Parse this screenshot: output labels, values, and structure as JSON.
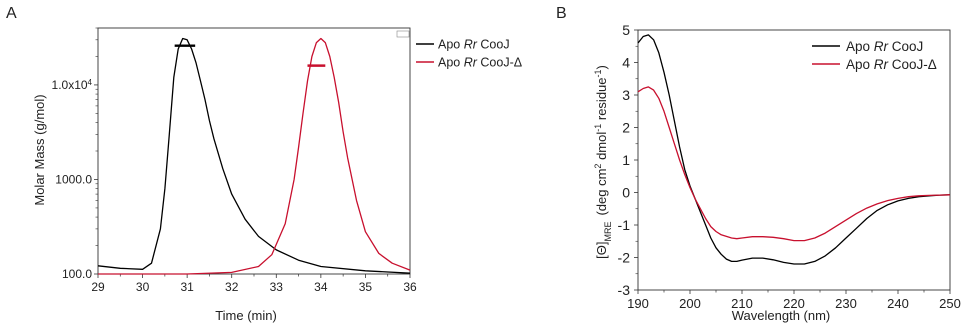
{
  "chart_data": [
    {
      "panel": "A",
      "type": "line",
      "xlabel": "Time (min)",
      "ylabel": "Molar Mass (g/mol)",
      "xlim": [
        29,
        36
      ],
      "ylim": [
        100,
        40000
      ],
      "yscale": "log",
      "x_ticks": [
        "29",
        "30",
        "31",
        "32",
        "33",
        "34",
        "35",
        "36"
      ],
      "y_ticks": [
        {
          "value": 100,
          "label": "100.0"
        },
        {
          "value": 1000,
          "label": "1000.0"
        },
        {
          "value": 10000,
          "label": "1.0x10",
          "sup": "4"
        }
      ],
      "legend_position": "outside-right",
      "series": [
        {
          "name": "Apo Rr CooJ",
          "color": "#000000",
          "x": [
            29,
            29.5,
            30,
            30.2,
            30.4,
            30.5,
            30.6,
            30.7,
            30.8,
            30.9,
            31.0,
            31.1,
            31.2,
            31.3,
            31.4,
            31.5,
            31.6,
            31.8,
            32.0,
            32.3,
            32.6,
            33.0,
            33.5,
            34.0,
            35.0,
            36.0
          ],
          "y": [
            122,
            115,
            112,
            130,
            300,
            800,
            3000,
            12000,
            24000,
            31000,
            30000,
            24000,
            17000,
            11000,
            7000,
            4200,
            2700,
            1300,
            700,
            380,
            250,
            180,
            140,
            120,
            108,
            102
          ]
        },
        {
          "name": "Apo Rr CooJ-Δ",
          "color": "#c8102e",
          "x": [
            29,
            30,
            31,
            32,
            32.6,
            32.9,
            33.2,
            33.4,
            33.5,
            33.6,
            33.7,
            33.8,
            33.9,
            34.0,
            34.1,
            34.2,
            34.3,
            34.4,
            34.5,
            34.6,
            34.8,
            35.0,
            35.3,
            35.6,
            36.0
          ],
          "y": [
            100,
            100,
            100,
            104,
            120,
            160,
            340,
            1000,
            2200,
            5000,
            11000,
            20000,
            28000,
            31000,
            28000,
            20000,
            12000,
            6500,
            3200,
            1700,
            600,
            280,
            165,
            130,
            110
          ]
        }
      ],
      "mass_bars": [
        {
          "series": "Apo Rr CooJ",
          "x_start": 30.72,
          "x_end": 31.18,
          "y": 26000
        },
        {
          "series": "Apo Rr CooJ-Δ",
          "x_start": 33.7,
          "x_end": 34.1,
          "y": 16000
        }
      ]
    },
    {
      "panel": "B",
      "type": "line",
      "xlabel": "Wavelength (nm)",
      "xlim": [
        190,
        250
      ],
      "ylim": [
        -3,
        5
      ],
      "x_ticks": [
        "190",
        "200",
        "210",
        "220",
        "230",
        "240",
        "250"
      ],
      "y_ticks": [
        "-3",
        "-2",
        "-1",
        "0",
        "1",
        "2",
        "3",
        "4",
        "5"
      ],
      "legend_position": "top-right",
      "series": [
        {
          "name": "Apo Rr CooJ",
          "color": "#000000",
          "x": [
            190,
            191,
            192,
            193,
            194,
            195,
            196,
            197,
            198,
            199,
            200,
            201,
            202,
            203,
            204,
            205,
            206,
            207,
            208,
            209,
            210,
            212,
            214,
            216,
            218,
            220,
            222,
            224,
            226,
            228,
            230,
            232,
            234,
            236,
            238,
            240,
            242,
            244,
            246,
            248,
            250
          ],
          "y": [
            4.6,
            4.8,
            4.85,
            4.7,
            4.3,
            3.7,
            3.0,
            2.2,
            1.4,
            0.7,
            0.2,
            -0.2,
            -0.6,
            -1.0,
            -1.4,
            -1.7,
            -1.9,
            -2.05,
            -2.12,
            -2.12,
            -2.08,
            -2.02,
            -2.02,
            -2.07,
            -2.15,
            -2.2,
            -2.2,
            -2.12,
            -1.95,
            -1.7,
            -1.4,
            -1.1,
            -0.8,
            -0.55,
            -0.38,
            -0.26,
            -0.18,
            -0.13,
            -0.1,
            -0.08,
            -0.07
          ]
        },
        {
          "name": "Apo Rr CooJ-Δ",
          "color": "#c8102e",
          "x": [
            190,
            191,
            192,
            193,
            194,
            195,
            196,
            197,
            198,
            199,
            200,
            201,
            202,
            203,
            204,
            205,
            206,
            207,
            208,
            209,
            210,
            212,
            214,
            216,
            218,
            220,
            222,
            224,
            226,
            228,
            230,
            232,
            234,
            236,
            238,
            240,
            242,
            244,
            246,
            248,
            250
          ],
          "y": [
            3.1,
            3.2,
            3.25,
            3.15,
            2.9,
            2.5,
            2.0,
            1.5,
            1.0,
            0.55,
            0.15,
            -0.2,
            -0.5,
            -0.8,
            -1.05,
            -1.2,
            -1.3,
            -1.35,
            -1.4,
            -1.42,
            -1.4,
            -1.36,
            -1.36,
            -1.38,
            -1.42,
            -1.48,
            -1.48,
            -1.4,
            -1.25,
            -1.05,
            -0.85,
            -0.65,
            -0.48,
            -0.35,
            -0.25,
            -0.18,
            -0.13,
            -0.1,
            -0.09,
            -0.08,
            -0.07
          ]
        }
      ]
    }
  ]
}
